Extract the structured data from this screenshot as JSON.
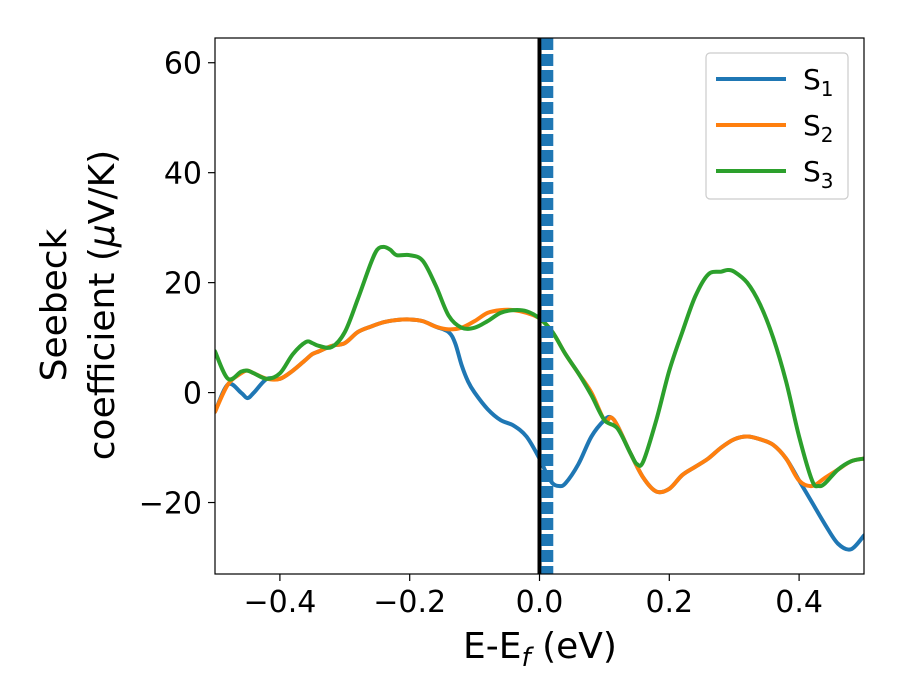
{
  "chart_data": {
    "type": "line",
    "xlabel": "E-E",
    "xlabel_sub": "f",
    "xlabel_unit": " (eV)",
    "ylabel_line1": "Seebeck",
    "ylabel_line2": "coefficient  (",
    "ylabel_mu": "μ",
    "ylabel_unit": "V/K)",
    "xlim": [
      -0.5,
      0.5
    ],
    "ylim": [
      -33,
      64.5
    ],
    "xticks": [
      -0.4,
      -0.2,
      0.0,
      0.2,
      0.4
    ],
    "xtick_labels": [
      "−0.4",
      "−0.2",
      "0.0",
      "0.2",
      "0.4"
    ],
    "yticks": [
      -20,
      0,
      20,
      40,
      60
    ],
    "ytick_labels": [
      "−20",
      "0",
      "20",
      "40",
      "60"
    ],
    "grid": false,
    "legend_position": "top-right",
    "vertical_lines": [
      {
        "x": 0.0,
        "style": "solid",
        "color": "#000000"
      },
      {
        "x": 0.012,
        "style": "dashed",
        "color": "#1f77b4"
      }
    ],
    "series": [
      {
        "name": "S",
        "sub": "1",
        "color": "#1f77b4",
        "x": [
          -0.5,
          -0.48,
          -0.46,
          -0.45,
          -0.44,
          -0.42,
          -0.4,
          -0.38,
          -0.36,
          -0.35,
          -0.34,
          -0.32,
          -0.3,
          -0.28,
          -0.26,
          -0.24,
          -0.22,
          -0.2,
          -0.18,
          -0.16,
          -0.14,
          -0.13,
          -0.12,
          -0.11,
          -0.1,
          -0.08,
          -0.06,
          -0.04,
          -0.02,
          0.0,
          0.01,
          0.02,
          0.03,
          0.04,
          0.06,
          0.08,
          0.1,
          0.11,
          0.12,
          0.14,
          0.16,
          0.18,
          0.2,
          0.22,
          0.24,
          0.26,
          0.28,
          0.3,
          0.32,
          0.34,
          0.36,
          0.38,
          0.4,
          0.42,
          0.44,
          0.46,
          0.48,
          0.5
        ],
        "y": [
          -3.5,
          1.5,
          0.0,
          -1.0,
          0.0,
          2.5,
          2.5,
          4.0,
          6.0,
          7.0,
          7.5,
          8.5,
          9.0,
          11.0,
          12.0,
          12.8,
          13.2,
          13.3,
          13.0,
          12.0,
          11.0,
          9.0,
          5.0,
          2.0,
          0.0,
          -3.0,
          -5.0,
          -6.0,
          -8.0,
          -12.0,
          -14.5,
          -16.5,
          -17.0,
          -16.5,
          -13.0,
          -8.0,
          -5.0,
          -4.5,
          -6.0,
          -11.0,
          -15.5,
          -18.0,
          -17.5,
          -15.0,
          -13.5,
          -12.0,
          -10.0,
          -8.5,
          -8.0,
          -8.5,
          -9.5,
          -12.0,
          -16.0,
          -20.0,
          -24.0,
          -27.5,
          -28.5,
          -26.0
        ]
      },
      {
        "name": "S",
        "sub": "2",
        "color": "#ff7f0e",
        "x": [
          -0.5,
          -0.48,
          -0.46,
          -0.45,
          -0.44,
          -0.42,
          -0.4,
          -0.38,
          -0.36,
          -0.35,
          -0.34,
          -0.32,
          -0.3,
          -0.28,
          -0.26,
          -0.24,
          -0.22,
          -0.2,
          -0.18,
          -0.16,
          -0.14,
          -0.12,
          -0.1,
          -0.08,
          -0.06,
          -0.04,
          -0.02,
          0.0,
          0.02,
          0.04,
          0.06,
          0.08,
          0.1,
          0.11,
          0.12,
          0.14,
          0.16,
          0.18,
          0.2,
          0.22,
          0.24,
          0.26,
          0.28,
          0.3,
          0.32,
          0.34,
          0.36,
          0.38,
          0.4,
          0.42,
          0.44,
          0.46,
          0.48,
          0.5
        ],
        "y": [
          -3.5,
          1.5,
          3.5,
          4.0,
          3.5,
          2.5,
          2.5,
          4.0,
          6.0,
          7.0,
          7.5,
          8.5,
          9.0,
          11.0,
          12.0,
          12.8,
          13.2,
          13.3,
          13.0,
          12.0,
          11.5,
          11.8,
          13.0,
          14.5,
          15.0,
          15.0,
          14.5,
          13.5,
          11.0,
          7.0,
          3.5,
          0.0,
          -5.0,
          -4.5,
          -6.0,
          -11.0,
          -15.5,
          -18.0,
          -17.5,
          -15.0,
          -13.5,
          -12.0,
          -10.0,
          -8.5,
          -8.0,
          -8.5,
          -9.5,
          -12.0,
          -16.0,
          -17.0,
          -15.5,
          -14.0,
          -12.5,
          -12.0
        ]
      },
      {
        "name": "S",
        "sub": "3",
        "color": "#2ca02c",
        "x": [
          -0.5,
          -0.48,
          -0.46,
          -0.45,
          -0.44,
          -0.42,
          -0.4,
          -0.38,
          -0.36,
          -0.35,
          -0.34,
          -0.32,
          -0.3,
          -0.28,
          -0.26,
          -0.25,
          -0.24,
          -0.23,
          -0.22,
          -0.2,
          -0.18,
          -0.16,
          -0.14,
          -0.12,
          -0.1,
          -0.08,
          -0.06,
          -0.04,
          -0.02,
          0.0,
          0.02,
          0.04,
          0.06,
          0.08,
          0.1,
          0.12,
          0.14,
          0.15,
          0.16,
          0.18,
          0.2,
          0.22,
          0.24,
          0.26,
          0.28,
          0.29,
          0.3,
          0.32,
          0.34,
          0.36,
          0.38,
          0.4,
          0.42,
          0.43,
          0.44,
          0.46,
          0.48,
          0.5
        ],
        "y": [
          7.5,
          2.5,
          3.8,
          4.0,
          3.5,
          2.5,
          3.5,
          7.0,
          9.2,
          9.0,
          8.5,
          8.3,
          11.0,
          17.0,
          23.5,
          26.0,
          26.5,
          26.0,
          25.0,
          25.0,
          24.0,
          19.5,
          14.0,
          11.8,
          11.8,
          13.0,
          14.5,
          15.0,
          14.8,
          13.5,
          11.0,
          7.0,
          3.5,
          -0.5,
          -5.0,
          -6.5,
          -11.0,
          -13.0,
          -12.5,
          -5.0,
          4.0,
          11.0,
          17.5,
          21.5,
          22.0,
          22.3,
          22.0,
          20.0,
          16.0,
          10.0,
          2.0,
          -8.0,
          -16.0,
          -17.0,
          -16.5,
          -14.0,
          -12.5,
          -12.0
        ]
      }
    ]
  }
}
